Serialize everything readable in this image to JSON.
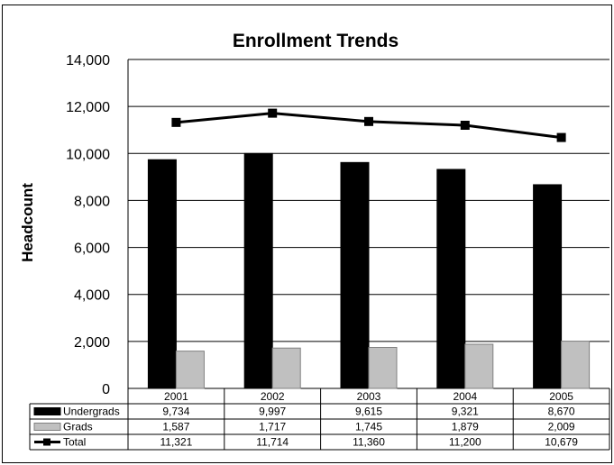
{
  "chart_data": {
    "type": "bar",
    "title": "Enrollment Trends",
    "ylabel": "Headcount",
    "xlabel": "",
    "categories": [
      "2001",
      "2002",
      "2003",
      "2004",
      "2005"
    ],
    "ylim": [
      0,
      14000
    ],
    "yticks": [
      0,
      2000,
      4000,
      6000,
      8000,
      10000,
      12000,
      14000
    ],
    "ytick_labels": [
      "0",
      "2,000",
      "4,000",
      "6,000",
      "8,000",
      "10,000",
      "12,000",
      "14,000"
    ],
    "grid": "horizontal major gridlines",
    "legend": "data table below the plot",
    "series": [
      {
        "name": "Undergrads",
        "type": "bar",
        "color": "#000000",
        "values": [
          9734,
          9997,
          9615,
          9321,
          8670
        ],
        "labels": [
          "9,734",
          "9,997",
          "9,615",
          "9,321",
          "8,670"
        ]
      },
      {
        "name": "Grads",
        "type": "bar",
        "color": "#c0c0c0",
        "values": [
          1587,
          1717,
          1745,
          1879,
          2009
        ],
        "labels": [
          "1,587",
          "1,717",
          "1,745",
          "1,879",
          "2,009"
        ]
      },
      {
        "name": "Total",
        "type": "line",
        "marker": "square",
        "color": "#000000",
        "values": [
          11321,
          11714,
          11360,
          11200,
          10679
        ],
        "labels": [
          "11,321",
          "11,714",
          "11,360",
          "11,200",
          "10,679"
        ]
      }
    ]
  }
}
